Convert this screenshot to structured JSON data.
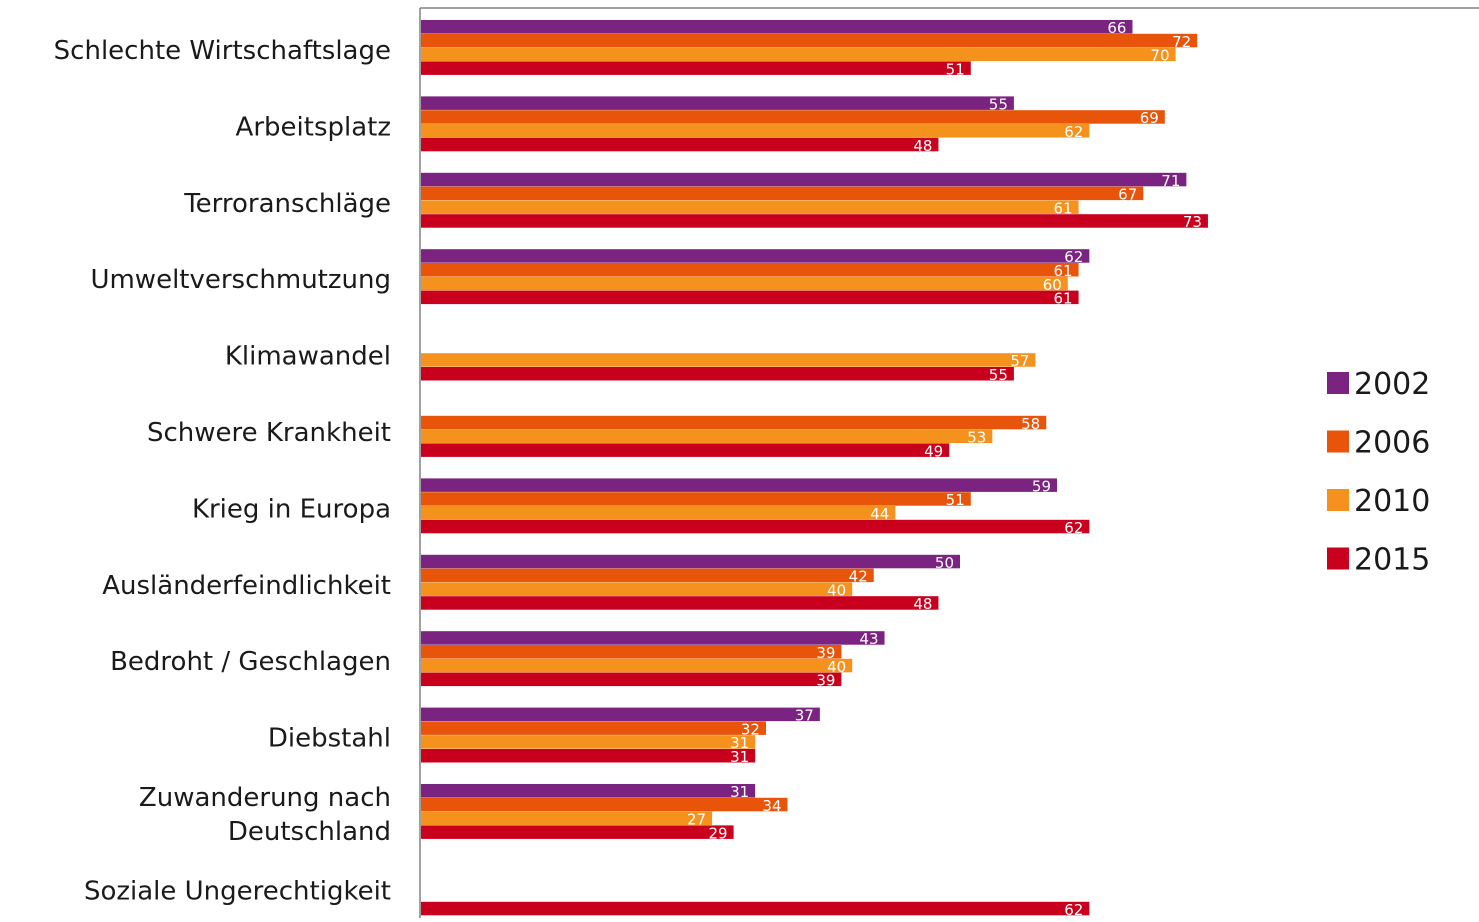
{
  "chart_data": {
    "type": "bar",
    "orientation": "horizontal",
    "categories": [
      [
        "Schlechte Wirtschaftslage"
      ],
      [
        "Arbeitsplatz"
      ],
      [
        "Terroranschläge"
      ],
      [
        "Umweltverschmutzung"
      ],
      [
        "Klimawandel"
      ],
      [
        "Schwere Krankheit"
      ],
      [
        "Krieg in Europa"
      ],
      [
        "Ausländerfeindlichkeit"
      ],
      [
        "Bedroht / Geschlagen"
      ],
      [
        "Diebstahl"
      ],
      [
        "Zuwanderung nach",
        "Deutschland"
      ],
      [
        "Soziale Ungerechtigkeit"
      ]
    ],
    "series": [
      {
        "name": "2002",
        "color": "#7B2381",
        "values": [
          66,
          55,
          71,
          62,
          null,
          null,
          59,
          50,
          43,
          37,
          31,
          null
        ]
      },
      {
        "name": "2006",
        "color": "#E8540A",
        "values": [
          72,
          69,
          67,
          61,
          null,
          58,
          51,
          42,
          39,
          32,
          34,
          null
        ]
      },
      {
        "name": "2010",
        "color": "#F5921E",
        "values": [
          70,
          62,
          61,
          60,
          57,
          53,
          44,
          40,
          40,
          31,
          27,
          null
        ]
      },
      {
        "name": "2015",
        "color": "#C8001E",
        "values": [
          51,
          48,
          73,
          61,
          55,
          49,
          62,
          48,
          39,
          31,
          29,
          62
        ]
      }
    ],
    "xlim": [
      0,
      98
    ],
    "grid": false,
    "data_labels": true,
    "legend_position": "right",
    "axis_color": "#808080"
  }
}
